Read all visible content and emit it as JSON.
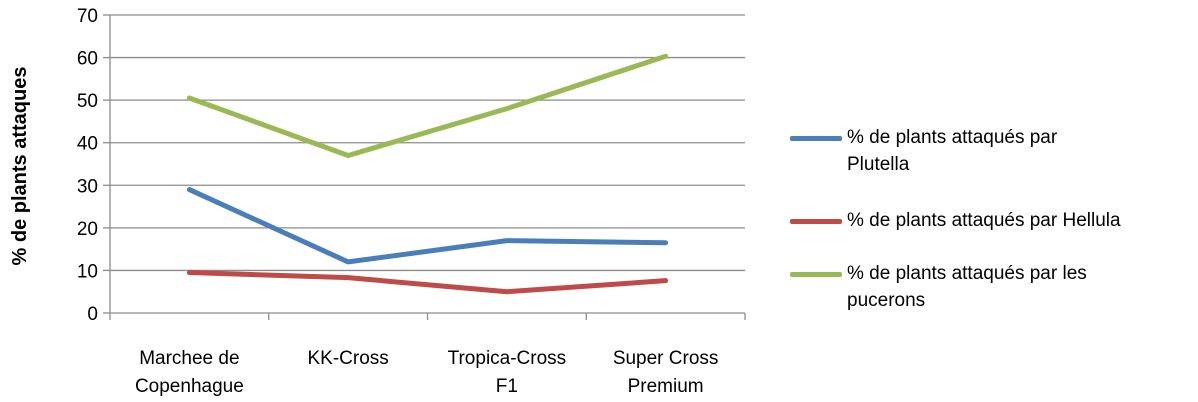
{
  "chart_data": {
    "type": "line",
    "title": "",
    "xlabel": "",
    "ylabel": "% de plants attaques",
    "ylim": [
      0,
      70
    ],
    "yticks": [
      0,
      10,
      20,
      30,
      40,
      50,
      60,
      70
    ],
    "grid": true,
    "legend_position": "right",
    "categories": [
      "Marchee de\nCopenhague",
      "KK-Cross",
      "Tropica-Cross\nF1",
      "Super Cross\nPremium"
    ],
    "series": [
      {
        "name": "% de plants attaqués par\nPlutella",
        "color": "#4a7ebb",
        "values": [
          29,
          12,
          17,
          16.5
        ]
      },
      {
        "name": "% de plants attaqués par Hellula",
        "color": "#be4b48",
        "values": [
          9.5,
          8.3,
          5,
          7.6
        ]
      },
      {
        "name": "% de plants attaqués  par les\npucerons",
        "color": "#98b954",
        "values": [
          50.5,
          37,
          48,
          60.3
        ]
      }
    ]
  }
}
